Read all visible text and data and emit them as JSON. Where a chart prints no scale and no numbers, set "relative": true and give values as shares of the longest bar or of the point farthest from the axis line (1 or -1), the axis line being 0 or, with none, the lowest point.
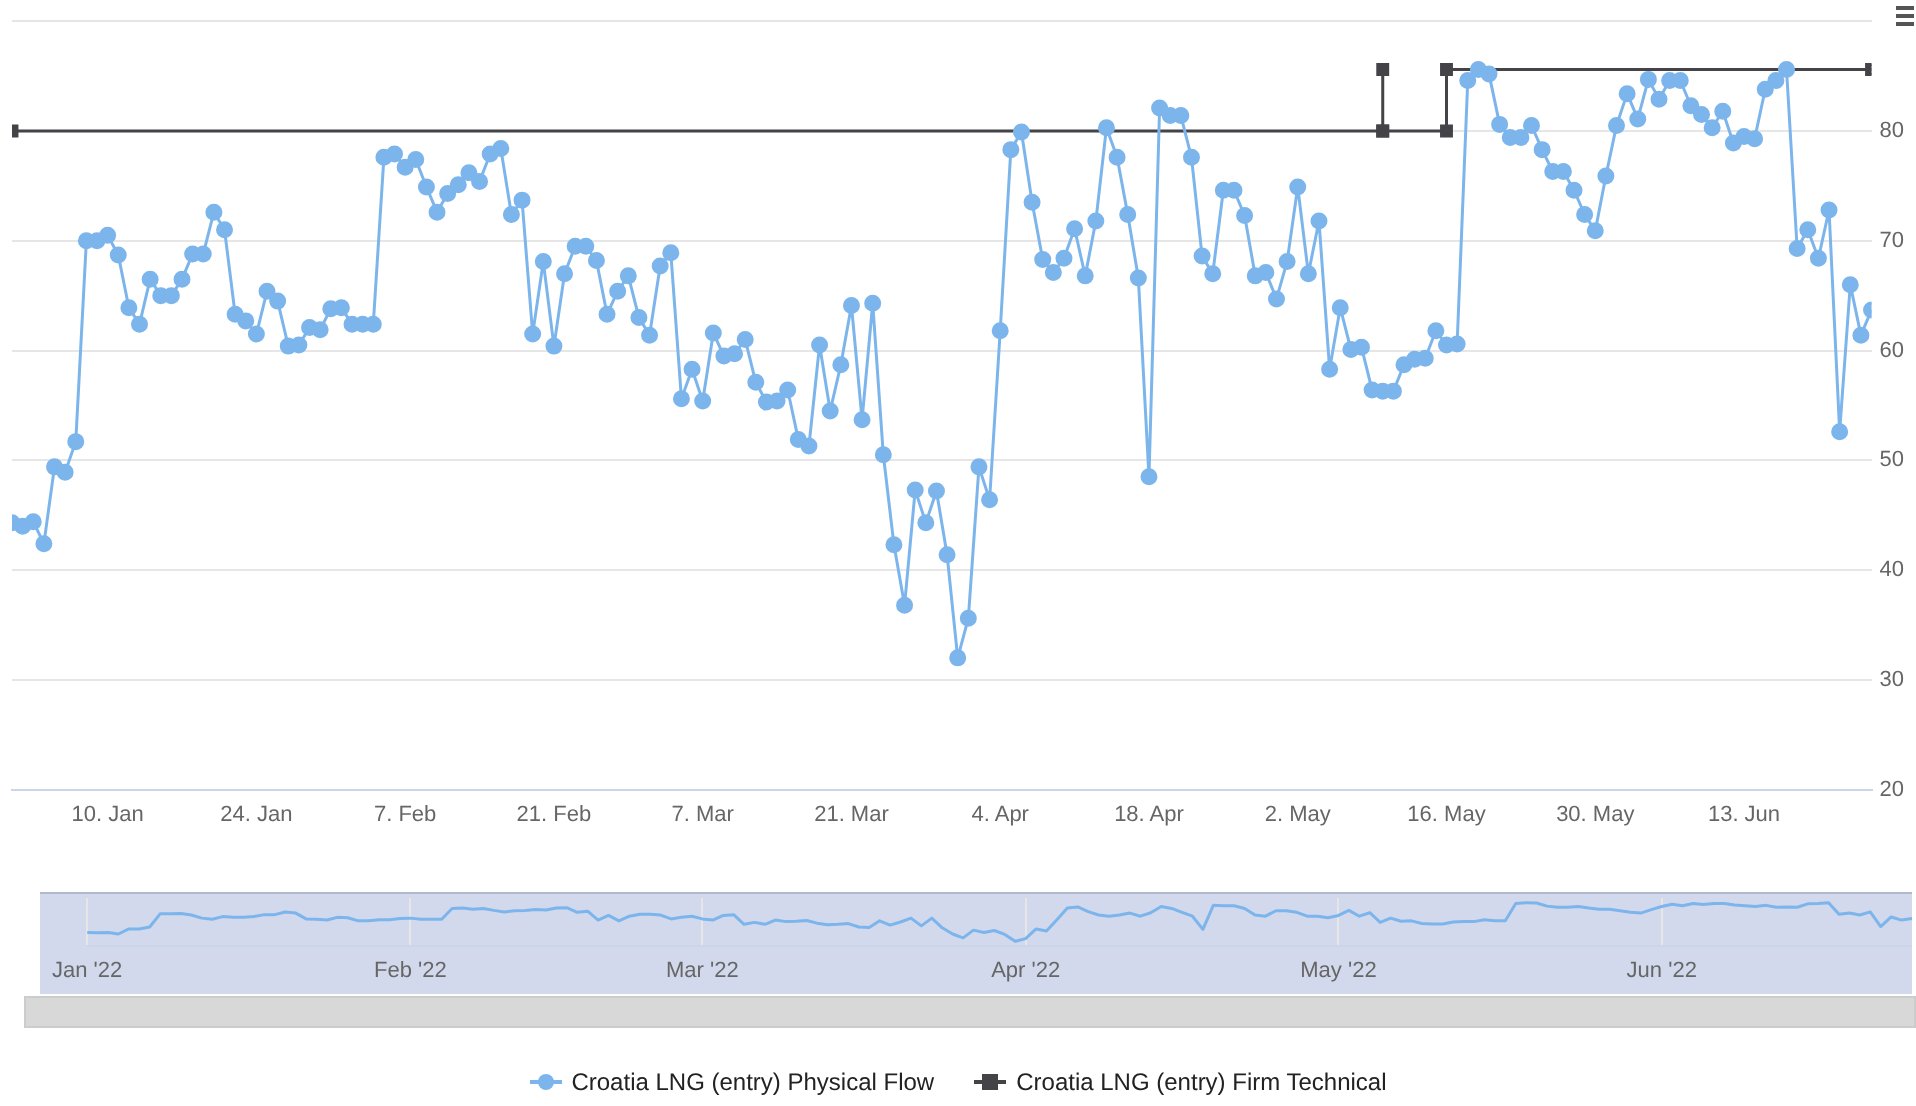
{
  "chart_data": [
    {
      "type": "line",
      "legend": "bottom",
      "grid": "y",
      "xlim": [
        "2022-01-01",
        "2022-06-25"
      ],
      "ylim": [
        20,
        90
      ],
      "yticks": [
        20,
        30,
        40,
        50,
        60,
        70,
        80,
        {
          "value": 90,
          "label": null
        }
      ],
      "xticks": [
        {
          "value": "2022-01-10",
          "label": "10. Jan"
        },
        {
          "value": "2022-01-24",
          "label": "24. Jan"
        },
        {
          "value": "2022-02-07",
          "label": "7. Feb"
        },
        {
          "value": "2022-02-21",
          "label": "21. Feb"
        },
        {
          "value": "2022-03-07",
          "label": "7. Mar"
        },
        {
          "value": "2022-03-21",
          "label": "21. Mar"
        },
        {
          "value": "2022-04-04",
          "label": "4. Apr"
        },
        {
          "value": "2022-04-18",
          "label": "18. Apr"
        },
        {
          "value": "2022-05-02",
          "label": "2. May"
        },
        {
          "value": "2022-05-16",
          "label": "16. May"
        },
        {
          "value": "2022-05-30",
          "label": "30. May"
        },
        {
          "value": "2022-06-13",
          "label": "13. Jun"
        }
      ],
      "x": [
        "2022-01-01",
        "2022-01-02",
        "2022-01-03",
        "2022-01-04",
        "2022-01-05",
        "2022-01-06",
        "2022-01-07",
        "2022-01-08",
        "2022-01-09",
        "2022-01-10",
        "2022-01-11",
        "2022-01-12",
        "2022-01-13",
        "2022-01-14",
        "2022-01-15",
        "2022-01-16",
        "2022-01-17",
        "2022-01-18",
        "2022-01-19",
        "2022-01-20",
        "2022-01-21",
        "2022-01-22",
        "2022-01-23",
        "2022-01-24",
        "2022-01-25",
        "2022-01-26",
        "2022-01-27",
        "2022-01-28",
        "2022-01-29",
        "2022-01-30",
        "2022-01-31",
        "2022-02-01",
        "2022-02-02",
        "2022-02-03",
        "2022-02-04",
        "2022-02-05",
        "2022-02-06",
        "2022-02-07",
        "2022-02-08",
        "2022-02-09",
        "2022-02-10",
        "2022-02-11",
        "2022-02-12",
        "2022-02-13",
        "2022-02-14",
        "2022-02-15",
        "2022-02-16",
        "2022-02-17",
        "2022-02-18",
        "2022-02-19",
        "2022-02-20",
        "2022-02-21",
        "2022-02-22",
        "2022-02-23",
        "2022-02-24",
        "2022-02-25",
        "2022-02-26",
        "2022-02-27",
        "2022-02-28",
        "2022-03-01",
        "2022-03-02",
        "2022-03-03",
        "2022-03-04",
        "2022-03-05",
        "2022-03-06",
        "2022-03-07",
        "2022-03-08",
        "2022-03-09",
        "2022-03-10",
        "2022-03-11",
        "2022-03-12",
        "2022-03-13",
        "2022-03-14",
        "2022-03-15",
        "2022-03-16",
        "2022-03-17",
        "2022-03-18",
        "2022-03-19",
        "2022-03-20",
        "2022-03-21",
        "2022-03-22",
        "2022-03-23",
        "2022-03-24",
        "2022-03-25",
        "2022-03-26",
        "2022-03-27",
        "2022-03-28",
        "2022-03-29",
        "2022-03-30",
        "2022-03-31",
        "2022-04-01",
        "2022-04-02",
        "2022-04-03",
        "2022-04-04",
        "2022-04-05",
        "2022-04-06",
        "2022-04-07",
        "2022-04-08",
        "2022-04-09",
        "2022-04-10",
        "2022-04-11",
        "2022-04-12",
        "2022-04-13",
        "2022-04-14",
        "2022-04-15",
        "2022-04-16",
        "2022-04-17",
        "2022-04-18",
        "2022-04-19",
        "2022-04-20",
        "2022-04-21",
        "2022-04-22",
        "2022-04-23",
        "2022-04-24",
        "2022-04-25",
        "2022-04-26",
        "2022-04-27",
        "2022-04-28",
        "2022-04-29",
        "2022-04-30",
        "2022-05-01",
        "2022-05-02",
        "2022-05-03",
        "2022-05-04",
        "2022-05-05",
        "2022-05-06",
        "2022-05-07",
        "2022-05-08",
        "2022-05-09",
        "2022-05-10",
        "2022-05-11",
        "2022-05-12",
        "2022-05-13",
        "2022-05-14",
        "2022-05-15",
        "2022-05-16",
        "2022-05-17",
        "2022-05-18",
        "2022-05-19",
        "2022-05-20",
        "2022-05-21",
        "2022-05-22",
        "2022-05-23",
        "2022-05-24",
        "2022-05-25",
        "2022-05-26",
        "2022-05-27",
        "2022-05-28",
        "2022-05-29",
        "2022-05-30",
        "2022-05-31",
        "2022-06-01",
        "2022-06-02",
        "2022-06-03",
        "2022-06-04",
        "2022-06-05",
        "2022-06-06",
        "2022-06-07",
        "2022-06-08",
        "2022-06-09",
        "2022-06-10",
        "2022-06-11",
        "2022-06-12",
        "2022-06-13",
        "2022-06-14",
        "2022-06-15",
        "2022-06-16",
        "2022-06-17",
        "2022-06-18",
        "2022-06-19",
        "2022-06-20",
        "2022-06-21",
        "2022-06-22",
        "2022-06-23",
        "2022-06-24",
        "2022-06-25"
      ],
      "series": [
        {
          "name": "Croatia LNG (entry) Physical Flow",
          "color": "#7cb5ec",
          "marker": "circle",
          "values": [
            44.3,
            44.0,
            44.4,
            42.4,
            49.4,
            48.9,
            51.7,
            70.0,
            70.0,
            70.5,
            68.7,
            63.9,
            62.4,
            66.5,
            65.0,
            65.0,
            66.5,
            68.8,
            68.8,
            72.6,
            71.0,
            63.3,
            62.7,
            61.5,
            65.4,
            64.5,
            60.4,
            60.5,
            62.1,
            61.9,
            63.8,
            63.9,
            62.4,
            62.4,
            62.4,
            77.6,
            77.9,
            76.7,
            77.4,
            74.9,
            72.6,
            74.3,
            75.1,
            76.2,
            75.4,
            77.9,
            78.4,
            72.4,
            73.7,
            61.5,
            68.1,
            60.4,
            67.0,
            69.5,
            69.5,
            68.2,
            63.3,
            65.4,
            66.8,
            63.0,
            61.4,
            67.7,
            68.9,
            55.6,
            58.3,
            55.4,
            61.6,
            59.5,
            59.7,
            61.0,
            57.1,
            55.3,
            55.4,
            56.4,
            51.9,
            51.3,
            60.5,
            54.5,
            58.7,
            64.1,
            53.7,
            64.3,
            50.5,
            42.3,
            36.8,
            47.3,
            44.3,
            47.2,
            41.4,
            32.0,
            35.6,
            49.4,
            46.4,
            61.8,
            78.3,
            79.9,
            73.5,
            68.3,
            67.1,
            68.4,
            71.1,
            66.8,
            71.8,
            80.3,
            77.6,
            72.4,
            66.6,
            48.5,
            82.1,
            81.4,
            81.4,
            77.6,
            68.6,
            67.0,
            74.6,
            74.6,
            72.3,
            66.8,
            67.1,
            64.7,
            68.1,
            74.9,
            67.0,
            71.8,
            58.3,
            63.9,
            60.1,
            60.3,
            56.4,
            56.3,
            56.3,
            58.7,
            59.2,
            59.3,
            61.8,
            60.5,
            60.6,
            84.6,
            85.6,
            85.2,
            80.6,
            79.4,
            79.4,
            80.5,
            78.3,
            76.3,
            76.3,
            74.6,
            72.4,
            70.9,
            75.9,
            80.5,
            83.4,
            81.1,
            84.7,
            82.9,
            84.6,
            84.6,
            82.3,
            81.5,
            80.3,
            81.8,
            78.9,
            79.5,
            79.3,
            83.8,
            84.6,
            85.6,
            69.3,
            71.0,
            68.4,
            72.8,
            52.6,
            66.0,
            61.4,
            63.7
          ]
        },
        {
          "name": "Croatia LNG (entry) Firm Technical",
          "color": "#434348",
          "marker": "square",
          "x": [
            "2022-01-01",
            "2022-05-10",
            "2022-05-10",
            "2022-05-10",
            "2022-05-16",
            "2022-05-16",
            "2022-06-25"
          ],
          "values": [
            80,
            80,
            85.6,
            80,
            80,
            85.6,
            85.6
          ]
        }
      ]
    },
    {
      "type": "line",
      "grid": "x",
      "tick_labels": "x",
      "marker": "none",
      "relative": true,
      "xlim": [
        "2022-01-01",
        "2022-06-25"
      ],
      "xticks": [
        {
          "value": "2022-01-01",
          "label": "Jan '22"
        },
        {
          "value": "2022-02-01",
          "label": "Feb '22"
        },
        {
          "value": "2022-03-01",
          "label": "Mar '22"
        },
        {
          "value": "2022-04-01",
          "label": "Apr '22"
        },
        {
          "value": "2022-05-01",
          "label": "May '22"
        },
        {
          "value": "2022-06-01",
          "label": "Jun '22"
        }
      ],
      "x": [
        "2022-01-01",
        "2022-01-02",
        "2022-01-03",
        "2022-01-04",
        "2022-01-05",
        "2022-01-06",
        "2022-01-07",
        "2022-01-08",
        "2022-01-09",
        "2022-01-10",
        "2022-01-11",
        "2022-01-12",
        "2022-01-13",
        "2022-01-14",
        "2022-01-15",
        "2022-01-16",
        "2022-01-17",
        "2022-01-18",
        "2022-01-19",
        "2022-01-20",
        "2022-01-21",
        "2022-01-22",
        "2022-01-23",
        "2022-01-24",
        "2022-01-25",
        "2022-01-26",
        "2022-01-27",
        "2022-01-28",
        "2022-01-29",
        "2022-01-30",
        "2022-01-31",
        "2022-02-01",
        "2022-02-02",
        "2022-02-03",
        "2022-02-04",
        "2022-02-05",
        "2022-02-06",
        "2022-02-07",
        "2022-02-08",
        "2022-02-09",
        "2022-02-10",
        "2022-02-11",
        "2022-02-12",
        "2022-02-13",
        "2022-02-14",
        "2022-02-15",
        "2022-02-16",
        "2022-02-17",
        "2022-02-18",
        "2022-02-19",
        "2022-02-20",
        "2022-02-21",
        "2022-02-22",
        "2022-02-23",
        "2022-02-24",
        "2022-02-25",
        "2022-02-26",
        "2022-02-27",
        "2022-02-28",
        "2022-03-01",
        "2022-03-02",
        "2022-03-03",
        "2022-03-04",
        "2022-03-05",
        "2022-03-06",
        "2022-03-07",
        "2022-03-08",
        "2022-03-09",
        "2022-03-10",
        "2022-03-11",
        "2022-03-12",
        "2022-03-13",
        "2022-03-14",
        "2022-03-15",
        "2022-03-16",
        "2022-03-17",
        "2022-03-18",
        "2022-03-19",
        "2022-03-20",
        "2022-03-21",
        "2022-03-22",
        "2022-03-23",
        "2022-03-24",
        "2022-03-25",
        "2022-03-26",
        "2022-03-27",
        "2022-03-28",
        "2022-03-29",
        "2022-03-30",
        "2022-03-31",
        "2022-04-01",
        "2022-04-02",
        "2022-04-03",
        "2022-04-04",
        "2022-04-05",
        "2022-04-06",
        "2022-04-07",
        "2022-04-08",
        "2022-04-09",
        "2022-04-10",
        "2022-04-11",
        "2022-04-12",
        "2022-04-13",
        "2022-04-14",
        "2022-04-15",
        "2022-04-16",
        "2022-04-17",
        "2022-04-18",
        "2022-04-19",
        "2022-04-20",
        "2022-04-21",
        "2022-04-22",
        "2022-04-23",
        "2022-04-24",
        "2022-04-25",
        "2022-04-26",
        "2022-04-27",
        "2022-04-28",
        "2022-04-29",
        "2022-04-30",
        "2022-05-01",
        "2022-05-02",
        "2022-05-03",
        "2022-05-04",
        "2022-05-05",
        "2022-05-06",
        "2022-05-07",
        "2022-05-08",
        "2022-05-09",
        "2022-05-10",
        "2022-05-11",
        "2022-05-12",
        "2022-05-13",
        "2022-05-14",
        "2022-05-15",
        "2022-05-16",
        "2022-05-17",
        "2022-05-18",
        "2022-05-19",
        "2022-05-20",
        "2022-05-21",
        "2022-05-22",
        "2022-05-23",
        "2022-05-24",
        "2022-05-25",
        "2022-05-26",
        "2022-05-27",
        "2022-05-28",
        "2022-05-29",
        "2022-05-30",
        "2022-05-31",
        "2022-06-01",
        "2022-06-02",
        "2022-06-03",
        "2022-06-04",
        "2022-06-05",
        "2022-06-06",
        "2022-06-07",
        "2022-06-08",
        "2022-06-09",
        "2022-06-10",
        "2022-06-11",
        "2022-06-12",
        "2022-06-13",
        "2022-06-14",
        "2022-06-15",
        "2022-06-16",
        "2022-06-17",
        "2022-06-18",
        "2022-06-19",
        "2022-06-20",
        "2022-06-21",
        "2022-06-22",
        "2022-06-23",
        "2022-06-24",
        "2022-06-25"
      ],
      "series": [
        {
          "color": "#7cb5ec",
          "values": [
            0.23,
            0.22,
            0.23,
            0.19,
            0.32,
            0.32,
            0.37,
            0.71,
            0.71,
            0.72,
            0.68,
            0.6,
            0.57,
            0.64,
            0.62,
            0.62,
            0.64,
            0.69,
            0.69,
            0.76,
            0.73,
            0.58,
            0.57,
            0.55,
            0.62,
            0.61,
            0.53,
            0.53,
            0.56,
            0.56,
            0.59,
            0.6,
            0.57,
            0.57,
            0.57,
            0.85,
            0.86,
            0.83,
            0.85,
            0.8,
            0.76,
            0.79,
            0.8,
            0.82,
            0.81,
            0.86,
            0.87,
            0.75,
            0.78,
            0.55,
            0.67,
            0.53,
            0.65,
            0.7,
            0.7,
            0.68,
            0.58,
            0.62,
            0.65,
            0.58,
            0.55,
            0.67,
            0.69,
            0.44,
            0.49,
            0.44,
            0.55,
            0.51,
            0.52,
            0.54,
            0.47,
            0.43,
            0.44,
            0.46,
            0.37,
            0.36,
            0.53,
            0.42,
            0.5,
            0.6,
            0.4,
            0.6,
            0.35,
            0.19,
            0.09,
            0.29,
            0.23,
            0.28,
            0.18,
            0,
            0.07,
            0.32,
            0.27,
            0.56,
            0.86,
            0.89,
            0.77,
            0.68,
            0.65,
            0.68,
            0.73,
            0.65,
            0.74,
            0.9,
            0.85,
            0.75,
            0.65,
            0.31,
            0.93,
            0.92,
            0.92,
            0.85,
            0.68,
            0.65,
            0.79,
            0.79,
            0.75,
            0.65,
            0.65,
            0.61,
            0.67,
            0.8,
            0.65,
            0.74,
            0.49,
            0.6,
            0.52,
            0.53,
            0.46,
            0.45,
            0.45,
            0.5,
            0.51,
            0.51,
            0.56,
            0.53,
            0.53,
            0.98,
            1,
            0.99,
            0.91,
            0.88,
            0.88,
            0.9,
            0.86,
            0.83,
            0.83,
            0.79,
            0.75,
            0.73,
            0.82,
            0.9,
            0.96,
            0.92,
            0.98,
            0.95,
            0.98,
            0.98,
            0.94,
            0.92,
            0.9,
            0.93,
            0.88,
            0.89,
            0.88,
            0.97,
            0.98,
            1,
            0.7,
            0.73,
            0.68,
            0.76,
            0.38,
            0.63,
            0.55,
            0.59
          ]
        }
      ]
    }
  ]
}
